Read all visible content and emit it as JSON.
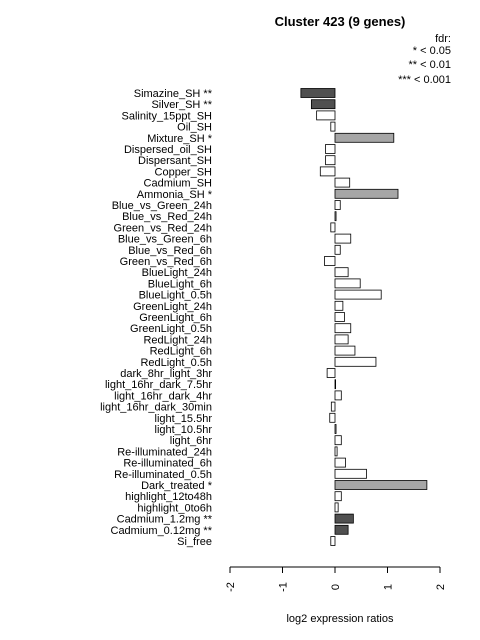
{
  "chart_data": {
    "type": "bar",
    "orientation": "horizontal",
    "title": "Cluster 423 (9 genes)",
    "xlabel": "log2 expression ratios",
    "ylabel": "",
    "xlim": [
      -2,
      2
    ],
    "xticks": [
      "-2",
      "-1",
      "0",
      "1",
      "2"
    ],
    "legend": {
      "position": "top-right",
      "lines": [
        "fdr:",
        "* < 0.05",
        "** < 0.01",
        "*** < 0.001"
      ]
    },
    "fill_colors": {
      "none": "#ffffff",
      "*": "#a6a6a6",
      "**": "#505050",
      "***": "#1a1a1a"
    },
    "categories": [
      "Simazine_SH **",
      "Silver_SH **",
      "Salinity_15ppt_SH",
      "Oil_SH",
      "Mixture_SH *",
      "Dispersed_oil_SH",
      "Dispersant_SH",
      "Copper_SH",
      "Cadmium_SH",
      "Ammonia_SH *",
      "Blue_vs_Green_24h",
      "Blue_vs_Red_24h",
      "Green_vs_Red_24h",
      "Blue_vs_Green_6h",
      "Blue_vs_Red_6h",
      "Green_vs_Red_6h",
      "BlueLight_24h",
      "BlueLight_6h",
      "BlueLight_0.5h",
      "GreenLight_24h",
      "GreenLight_6h",
      "GreenLight_0.5h",
      "RedLight_24h",
      "RedLight_6h",
      "RedLight_0.5h",
      "dark_8hr_light_3hr",
      "light_16hr_dark_7.5hr",
      "light_16hr_dark_4hr",
      "light_16hr_dark_30min",
      "light_15.5hr",
      "light_10.5hr",
      "light_6hr",
      "Re-illuminated_24h",
      "Re-illuminated_6h",
      "Re-illuminated_0.5h",
      "Dark_treated *",
      "highlight_12to48h",
      "highlight_0to6h",
      "Cadmium_1.2mg **",
      "Cadmium_0.12mg **",
      "Si_free"
    ],
    "values": [
      -0.65,
      -0.45,
      -0.35,
      -0.08,
      1.12,
      -0.18,
      -0.18,
      -0.28,
      0.28,
      1.2,
      0.1,
      0.02,
      -0.08,
      0.3,
      0.1,
      -0.2,
      0.25,
      0.48,
      0.88,
      0.15,
      0.18,
      0.3,
      0.25,
      0.38,
      0.78,
      -0.15,
      0.0,
      0.12,
      -0.07,
      -0.1,
      0.02,
      0.12,
      0.04,
      0.2,
      0.6,
      1.75,
      0.12,
      0.06,
      0.35,
      0.25,
      -0.08
    ],
    "significance": [
      "**",
      "**",
      "",
      "",
      "*",
      "",
      "",
      "",
      "",
      "*",
      "",
      "",
      "",
      "",
      "",
      "",
      "",
      "",
      "",
      "",
      "",
      "",
      "",
      "",
      "",
      "",
      "",
      "",
      "",
      "",
      "",
      "",
      "",
      "",
      "",
      "*",
      "",
      "",
      "**",
      "**",
      ""
    ]
  }
}
